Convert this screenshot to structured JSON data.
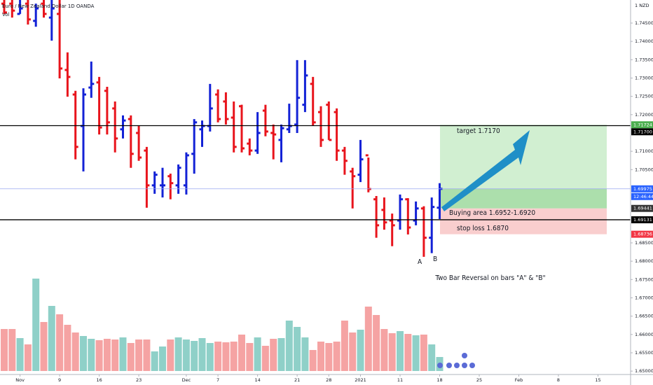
{
  "chart_data": {
    "type": "ohlc",
    "title": "Euro / New Zealand Dollar  1D  OANDA",
    "volume_label": "Vol",
    "currency": "1 NZD",
    "up_color": "#1322d6",
    "down_color": "#e8141c",
    "ylim": [
      1.6485,
      1.7513
    ],
    "yticks": [
      {
        "value": 1.745,
        "label": "1.74500"
      },
      {
        "value": 1.74,
        "label": "1.74000"
      },
      {
        "value": 1.735,
        "label": "1.73500"
      },
      {
        "value": 1.73,
        "label": "1.73000"
      },
      {
        "value": 1.725,
        "label": "1.72500"
      },
      {
        "value": 1.72,
        "label": "1.72000"
      },
      {
        "value": 1.71,
        "label": "1.71000"
      },
      {
        "value": 1.705,
        "label": "1.70500"
      },
      {
        "value": 1.685,
        "label": "1.68500"
      },
      {
        "value": 1.68,
        "label": "1.68000"
      },
      {
        "value": 1.675,
        "label": "1.67500"
      },
      {
        "value": 1.67,
        "label": "1.67000"
      },
      {
        "value": 1.665,
        "label": "1.66500"
      },
      {
        "value": 1.66,
        "label": "1.66000"
      },
      {
        "value": 1.655,
        "label": "1.65500"
      },
      {
        "value": 1.65,
        "label": "1.65000"
      }
    ],
    "xticks": [
      {
        "value": 2,
        "label": "Nov"
      },
      {
        "value": 7,
        "label": "9"
      },
      {
        "value": 12,
        "label": "16"
      },
      {
        "value": 17,
        "label": "23"
      },
      {
        "value": 23,
        "label": "Dec"
      },
      {
        "value": 27,
        "label": "7"
      },
      {
        "value": 32,
        "label": "14"
      },
      {
        "value": 37,
        "label": "21"
      },
      {
        "value": 41,
        "label": "28"
      },
      {
        "value": 45,
        "label": "2021"
      },
      {
        "value": 50,
        "label": "11"
      },
      {
        "value": 55,
        "label": "18"
      },
      {
        "value": 60,
        "label": "25"
      },
      {
        "value": 65,
        "label": "Feb"
      },
      {
        "value": 70,
        "label": "8"
      },
      {
        "value": 75,
        "label": "15"
      }
    ],
    "open": [
      1.7503,
      1.7503,
      1.7475,
      1.7503,
      1.7456,
      1.7503,
      1.7465,
      1.7475,
      1.7322,
      1.7255,
      1.7169,
      1.7274,
      1.7288,
      1.7265,
      1.7217,
      1.716,
      1.7188,
      1.715,
      1.7102,
      1.7007,
      1.7007,
      1.7032,
      1.7007,
      1.7007,
      1.7093,
      1.716,
      1.7169,
      1.7255,
      1.7236,
      1.7192,
      1.7223,
      1.7121,
      1.7102,
      1.7211,
      1.715,
      1.7131,
      1.716,
      1.7173,
      1.7227,
      1.7284,
      1.7207,
      1.7227,
      1.7207,
      1.7102,
      1.7045,
      1.7036,
      1.7089,
      1.6969,
      1.694,
      1.6911,
      1.6911,
      1.6969,
      1.6911,
      1.6944,
      1.6864,
      1.6946
    ],
    "high": [
      1.7513,
      1.7513,
      1.7513,
      1.7513,
      1.7503,
      1.7513,
      1.7513,
      1.7513,
      1.737,
      1.7265,
      1.7272,
      1.7345,
      1.7303,
      1.7276,
      1.7236,
      1.7198,
      1.7198,
      1.7169,
      1.7112,
      1.7045,
      1.7055,
      1.7039,
      1.7064,
      1.7097,
      1.7188,
      1.7184,
      1.7284,
      1.7269,
      1.7261,
      1.7236,
      1.7227,
      1.7135,
      1.7207,
      1.7227,
      1.7173,
      1.7173,
      1.723,
      1.7349,
      1.7349,
      1.7303,
      1.7223,
      1.7236,
      1.7217,
      1.7112,
      1.7055,
      1.7131,
      1.7083,
      1.6978,
      1.6974,
      1.693,
      1.6982,
      1.6972,
      1.6963,
      1.695,
      1.6974,
      1.7013
    ],
    "low": [
      1.7475,
      1.7465,
      1.7475,
      1.7446,
      1.744,
      1.7465,
      1.7402,
      1.7299,
      1.7249,
      1.7078,
      1.7045,
      1.7246,
      1.7146,
      1.7146,
      1.7097,
      1.7135,
      1.7055,
      1.7074,
      1.6946,
      1.6984,
      1.6974,
      1.6969,
      1.6984,
      1.6982,
      1.7039,
      1.7112,
      1.7154,
      1.7179,
      1.7173,
      1.7097,
      1.7097,
      1.7089,
      1.7093,
      1.7141,
      1.7078,
      1.707,
      1.715,
      1.715,
      1.7207,
      1.7169,
      1.7112,
      1.7131,
      1.7074,
      1.7036,
      1.6944,
      1.7016,
      1.6988,
      1.6864,
      1.6886,
      1.6841,
      1.6886,
      1.6873,
      1.6898,
      1.6812,
      1.6822,
      1.6915
    ],
    "close": [
      1.7479,
      1.7484,
      1.749,
      1.746,
      1.749,
      1.7475,
      1.749,
      1.7326,
      1.7303,
      1.7112,
      1.7255,
      1.7284,
      1.7165,
      1.7179,
      1.7135,
      1.7184,
      1.7093,
      1.7083,
      1.7007,
      1.7036,
      1.7007,
      1.7013,
      1.7055,
      1.7089,
      1.7179,
      1.7169,
      1.7217,
      1.7188,
      1.7188,
      1.7112,
      1.7108,
      1.7102,
      1.715,
      1.7154,
      1.7146,
      1.7163,
      1.7169,
      1.7246,
      1.7307,
      1.7179,
      1.7131,
      1.7131,
      1.7102,
      1.7074,
      1.7032,
      1.7078,
      1.6997,
      1.6898,
      1.6906,
      1.6898,
      1.6969,
      1.6892,
      1.6944,
      1.6864,
      1.6948,
      1.69975
    ],
    "volume": [
      60,
      60,
      47,
      38,
      132,
      70,
      93,
      81,
      66,
      55,
      50,
      46,
      44,
      46,
      45,
      48,
      40,
      45,
      45,
      28,
      35,
      45,
      48,
      45,
      43,
      47,
      40,
      42,
      41,
      42,
      52,
      40,
      48,
      36,
      46,
      47,
      72,
      63,
      48,
      30,
      42,
      40,
      42,
      72,
      55,
      59,
      92,
      80,
      60,
      54,
      57,
      53,
      51,
      52,
      38,
      20
    ],
    "volume_up_color": "#8fd0c8",
    "volume_down_color": "#f5a3a3",
    "hlines": [
      {
        "value": 1.717,
        "color": "#000000"
      },
      {
        "value": 1.69131,
        "color": "#000000"
      },
      {
        "value": 1.69975,
        "color": "#9aa6f0"
      }
    ],
    "boxes": [
      {
        "top": 1.71724,
        "bottom": 1.69441,
        "color": "#c9ecc9"
      },
      {
        "top": 1.69975,
        "bottom": 1.69441,
        "color": "#a6dca6"
      },
      {
        "top": 1.69441,
        "bottom": 1.68736,
        "color": "#f8c6c6"
      }
    ],
    "price_labels": [
      {
        "value": 1.71724,
        "label": "1.71724",
        "bg": "#4caf50"
      },
      {
        "value": 1.717,
        "label": "1.71700",
        "bg": "#000000"
      },
      {
        "value": 1.69975,
        "label": "1.69975",
        "bg": "#2962ff"
      },
      {
        "value": 1.69441,
        "label": "1.69441",
        "bg": "#333333"
      },
      {
        "value": 1.69131,
        "label": "1.69131",
        "bg": "#000000"
      },
      {
        "value": 1.68736,
        "label": "1.68736",
        "bg": "#f23645"
      }
    ],
    "countdown": "12:46:44",
    "annotations": {
      "target": "target 1.7170",
      "buying": "Buying area 1.6952-1.6920",
      "stop": "stop loss 1.6870",
      "a": "A",
      "b": "B",
      "note": "Two Bar Reversal on bars \"A\" & \"B\""
    }
  }
}
